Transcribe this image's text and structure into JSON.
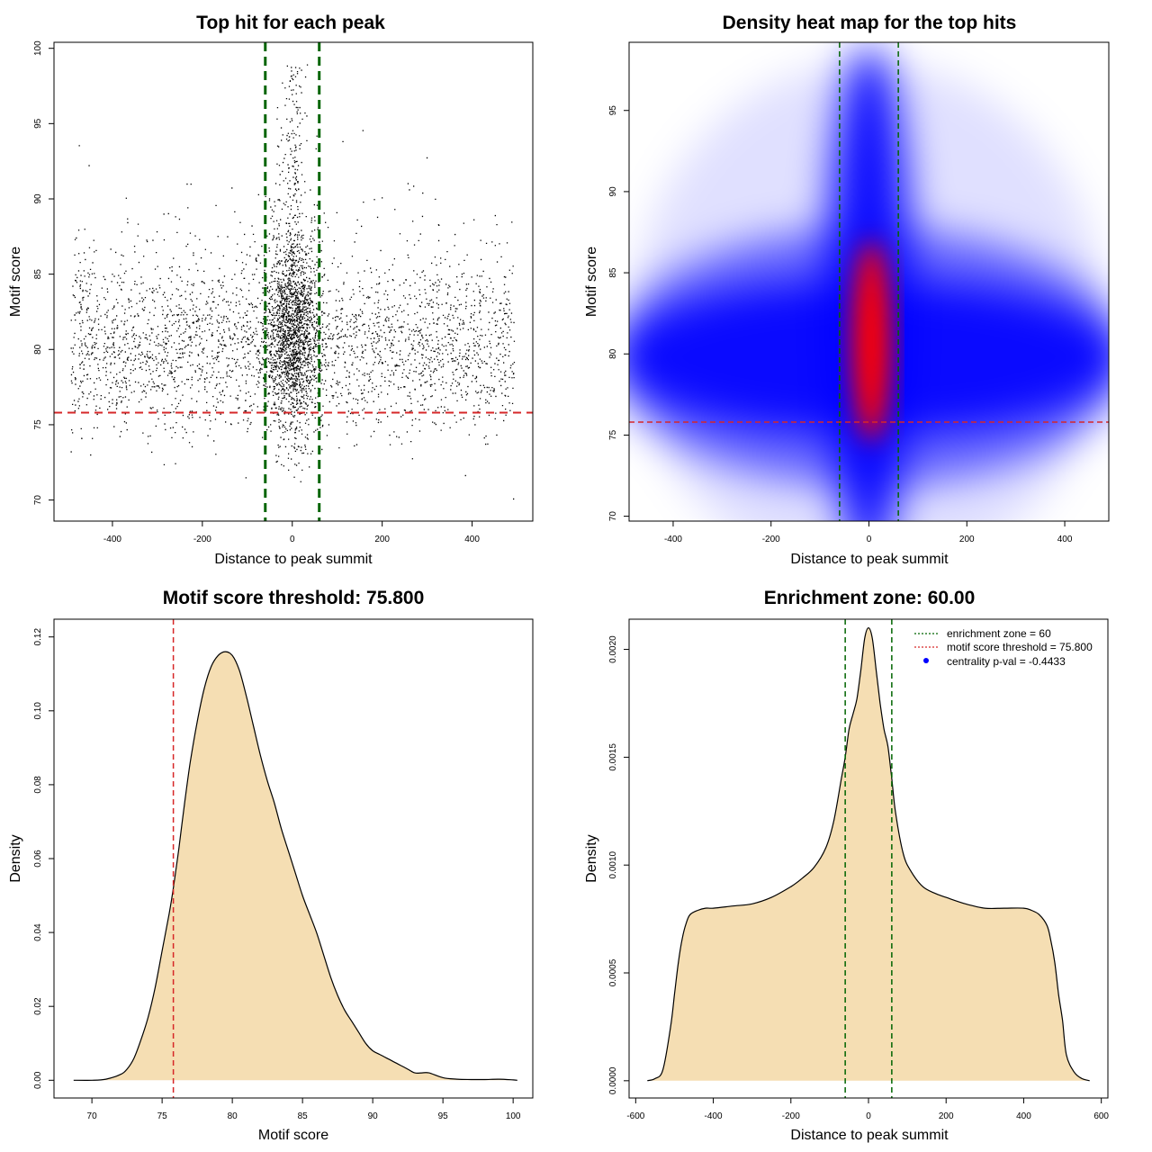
{
  "colors": {
    "zone": "#006400",
    "threshold": "#d62728",
    "fill": "#f5deb3",
    "heat_low": "#0000ff",
    "heat_high": "#ff0000",
    "points": "#000000"
  },
  "chart_data": [
    {
      "id": "scatter",
      "type": "scatter",
      "title": "Top hit for each peak",
      "xlabel": "Distance to peak summit",
      "ylabel": "Motif score",
      "xlim": [
        -530,
        535
      ],
      "ylim": [
        68.6,
        100.4
      ],
      "xticks": [
        -400,
        -200,
        0,
        200,
        400
      ],
      "yticks": [
        70,
        75,
        80,
        85,
        90,
        95,
        100
      ],
      "vlines": [
        -60,
        60
      ],
      "hline": 75.8,
      "grid": false
    },
    {
      "id": "heatmap",
      "type": "heatmap",
      "title": "Density heat map for the top hits",
      "xlabel": "Distance to peak summit",
      "ylabel": "Motif score",
      "xlim": [
        -490,
        490
      ],
      "ylim": [
        69.7,
        99.2
      ],
      "xticks": [
        -400,
        -200,
        0,
        200,
        400
      ],
      "yticks": [
        70,
        75,
        80,
        85,
        90,
        95
      ],
      "vlines": [
        -60,
        60
      ],
      "hline": 75.8,
      "grid": false
    },
    {
      "id": "score_density",
      "type": "area",
      "title": "Motif score threshold: 75.800",
      "xlabel": "Motif score",
      "ylabel": "Density",
      "xlim": [
        67.3,
        101.4
      ],
      "ylim": [
        -0.0048,
        0.1248
      ],
      "xticks": [
        70,
        75,
        80,
        85,
        90,
        95,
        100
      ],
      "yticks": [
        0.0,
        0.02,
        0.04,
        0.06,
        0.08,
        0.1,
        0.12
      ],
      "ytick_labels": [
        "0.00",
        "0.02",
        "0.04",
        "0.06",
        "0.08",
        "0.10",
        "0.12"
      ],
      "vline": 75.8,
      "x": [
        68.7,
        70,
        71,
        72,
        72.5,
        73,
        73.5,
        74,
        74.5,
        75,
        75.5,
        75.8,
        76.2,
        76.6,
        77,
        77.5,
        78,
        78.5,
        79,
        79.5,
        80,
        80.5,
        81,
        81.5,
        82,
        82.5,
        83,
        83.5,
        84,
        84.5,
        85,
        85.5,
        86,
        86.5,
        87,
        87.5,
        88,
        88.5,
        89,
        89.5,
        90,
        90.5,
        91,
        91.5,
        92,
        92.5,
        93,
        93.5,
        94,
        95,
        96,
        97,
        98,
        99,
        100,
        100.3
      ],
      "y": [
        0,
        0,
        0.0003,
        0.0015,
        0.003,
        0.006,
        0.011,
        0.017,
        0.025,
        0.035,
        0.045,
        0.052,
        0.063,
        0.075,
        0.086,
        0.097,
        0.106,
        0.112,
        0.115,
        0.116,
        0.115,
        0.111,
        0.104,
        0.096,
        0.088,
        0.081,
        0.075,
        0.068,
        0.062,
        0.056,
        0.05,
        0.045,
        0.04,
        0.034,
        0.028,
        0.023,
        0.019,
        0.016,
        0.013,
        0.01,
        0.008,
        0.007,
        0.006,
        0.005,
        0.004,
        0.003,
        0.002,
        0.002,
        0.002,
        0.0007,
        0.0003,
        0.0002,
        0.0002,
        0.0003,
        0.0001,
        0
      ]
    },
    {
      "id": "dist_density",
      "type": "area",
      "title": "Enrichment zone: 60.00",
      "xlabel": "Distance to peak summit",
      "ylabel": "Density",
      "xlim": [
        -617,
        617
      ],
      "ylim": [
        -8e-05,
        0.00214
      ],
      "xticks": [
        -600,
        -400,
        -200,
        0,
        200,
        400,
        600
      ],
      "yticks": [
        0.0,
        0.0005,
        0.001,
        0.0015,
        0.002
      ],
      "ytick_labels": [
        "0.0000",
        "0.0005",
        "0.0010",
        "0.0015",
        "0.0020"
      ],
      "vlines": [
        -60,
        60
      ],
      "x": [
        -570,
        -550,
        -530,
        -510,
        -500,
        -490,
        -480,
        -470,
        -460,
        -440,
        -420,
        -400,
        -350,
        -300,
        -250,
        -200,
        -170,
        -140,
        -110,
        -90,
        -70,
        -60,
        -50,
        -40,
        -30,
        -20,
        -10,
        0,
        10,
        20,
        30,
        40,
        50,
        60,
        70,
        90,
        110,
        140,
        170,
        200,
        250,
        300,
        350,
        400,
        420,
        440,
        460,
        470,
        480,
        490,
        500,
        510,
        530,
        550,
        570
      ],
      "y": [
        0,
        1e-05,
        5e-05,
        0.00025,
        0.0004,
        0.00055,
        0.00066,
        0.00073,
        0.00077,
        0.00079,
        0.0008,
        0.0008,
        0.00081,
        0.00082,
        0.00085,
        0.0009,
        0.00094,
        0.00099,
        0.00108,
        0.0012,
        0.0014,
        0.0015,
        0.00163,
        0.0017,
        0.00177,
        0.0019,
        0.00205,
        0.0021,
        0.00205,
        0.0019,
        0.00175,
        0.00163,
        0.00155,
        0.0014,
        0.00124,
        0.00105,
        0.00097,
        0.0009,
        0.00087,
        0.00085,
        0.00082,
        0.0008,
        0.0008,
        0.0008,
        0.00079,
        0.00077,
        0.00072,
        0.00065,
        0.00055,
        0.0004,
        0.00028,
        0.00012,
        4e-05,
        1e-05,
        0
      ],
      "legend_position": "top-right",
      "legend": [
        {
          "label": "enrichment zone = 60",
          "style": "dotted-line",
          "color": "#006400"
        },
        {
          "label": "motif score threshold = 75.800",
          "style": "dotted-line",
          "color": "#d62728"
        },
        {
          "label": "centrality p-val = -0.4433",
          "style": "point",
          "color": "#0000ff"
        }
      ]
    }
  ]
}
